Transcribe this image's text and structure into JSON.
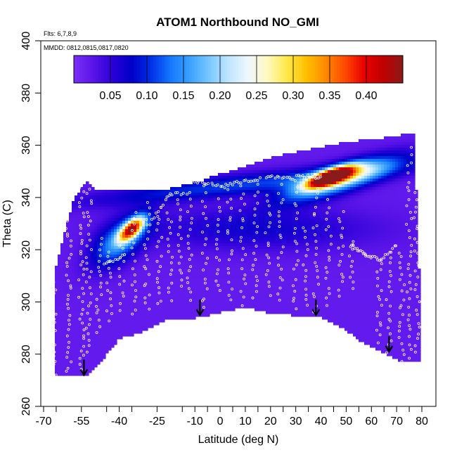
{
  "chart_data": {
    "type": "heatmap",
    "title": "ATOM1 Northbound NO_GMI",
    "annotations": {
      "flights": "Flts: 6,7,8,9",
      "dates": "MMDD: 0812,0815,0817,0820"
    },
    "xlabel": "Latitude (deg N)",
    "ylabel": "Theta (C)",
    "xlim": [
      -70,
      80
    ],
    "ylim": [
      260,
      400
    ],
    "xticks": [
      -70,
      -55,
      -40,
      -25,
      -10,
      0,
      10,
      20,
      30,
      40,
      50,
      60,
      70,
      80
    ],
    "yticks": [
      260,
      280,
      300,
      320,
      340,
      360,
      380,
      400
    ],
    "colorbar": {
      "ticks": [
        0.05,
        0.1,
        0.15,
        0.2,
        0.25,
        0.3,
        0.35,
        0.4
      ],
      "tick_labels": [
        "0.05",
        "0.10",
        "0.15",
        "0.20",
        "0.25",
        "0.30",
        "0.35",
        "0.40"
      ],
      "min": 0.0,
      "max": 0.45,
      "colors": [
        "#7b2ff7",
        "#5a14e8",
        "#2a00d8",
        "#0000c8",
        "#0030e6",
        "#1478ff",
        "#3ca0ff",
        "#78c8ff",
        "#c0e6ff",
        "#eef7ff",
        "#fff8c0",
        "#ffe94a",
        "#ffc000",
        "#ff8a00",
        "#ff4a00",
        "#e80000",
        "#c00000",
        "#8b1a1a"
      ]
    },
    "background_value": 0.02,
    "field_bounds_theta": [
      {
        "lat": -66,
        "bottom": 272,
        "top": 310
      },
      {
        "lat": -58,
        "bottom": 272,
        "top": 340
      },
      {
        "lat": -53,
        "bottom": 272,
        "top": 346
      },
      {
        "lat": -49,
        "bottom": 275,
        "top": 343
      },
      {
        "lat": -40,
        "bottom": 286,
        "top": 343
      },
      {
        "lat": -32,
        "bottom": 288,
        "top": 343
      },
      {
        "lat": -22,
        "bottom": 293,
        "top": 343
      },
      {
        "lat": -9,
        "bottom": 294,
        "top": 346
      },
      {
        "lat": 0,
        "bottom": 296,
        "top": 349
      },
      {
        "lat": 10,
        "bottom": 298,
        "top": 352
      },
      {
        "lat": 19,
        "bottom": 296,
        "top": 355
      },
      {
        "lat": 28,
        "bottom": 295,
        "top": 357
      },
      {
        "lat": 38,
        "bottom": 295,
        "top": 359
      },
      {
        "lat": 49,
        "bottom": 290,
        "top": 361
      },
      {
        "lat": 57,
        "bottom": 284,
        "top": 362
      },
      {
        "lat": 66,
        "bottom": 280,
        "top": 363
      },
      {
        "lat": 72,
        "bottom": 277,
        "top": 364
      },
      {
        "lat": 77,
        "bottom": 277,
        "top": 364
      },
      {
        "lat": 79,
        "bottom": 277,
        "top": 310
      }
    ],
    "features": [
      {
        "name": "southern-plume",
        "lat": -35,
        "theta": 328,
        "peak": 0.33,
        "sx": 5,
        "sy": 3.5,
        "tilt": 0.6
      },
      {
        "name": "southern-plume-halo",
        "lat": -40,
        "theta": 323,
        "peak": 0.13,
        "sx": 11,
        "sy": 8,
        "tilt": 0.5
      },
      {
        "name": "northern-plume-core",
        "lat": 44,
        "theta": 348,
        "peak": 0.42,
        "sx": 9,
        "sy": 2.8,
        "tilt": 0.32
      },
      {
        "name": "northern-plume-halo",
        "lat": 48,
        "theta": 347,
        "peak": 0.2,
        "sx": 22,
        "sy": 5,
        "tilt": 0.3
      },
      {
        "name": "upper-layer-band",
        "lat": 10,
        "theta": 345,
        "peak": 0.09,
        "sx": 60,
        "sy": 4,
        "tilt": 0.1
      },
      {
        "name": "mid-dark-band",
        "lat": 15,
        "theta": 328,
        "peak": 0.05,
        "sx": 45,
        "sy": 8,
        "tilt": 0
      }
    ],
    "flight_tracks": [
      {
        "lat": -66,
        "t0": 272,
        "t1": 310,
        "n": 24
      },
      {
        "lat": -60,
        "t0": 272,
        "t1": 332,
        "n": 30
      },
      {
        "lat": -55,
        "t0": 273,
        "t1": 345,
        "n": 36
      },
      {
        "lat": -52,
        "t0": 280,
        "t1": 345,
        "n": 30
      },
      {
        "lat": -48,
        "t0": 288,
        "t1": 325,
        "n": 18
      },
      {
        "lat": -44,
        "t0": 292,
        "t1": 320,
        "n": 14
      },
      {
        "lat": -39,
        "t0": 296,
        "t1": 328,
        "n": 14
      },
      {
        "lat": -34,
        "t0": 294,
        "t1": 335,
        "n": 18
      },
      {
        "lat": -29,
        "t0": 296,
        "t1": 339,
        "n": 20
      },
      {
        "lat": -24,
        "t0": 298,
        "t1": 337,
        "n": 18
      },
      {
        "lat": -20,
        "t0": 300,
        "t1": 336,
        "n": 16
      },
      {
        "lat": -16,
        "t0": 305,
        "t1": 341,
        "n": 16
      },
      {
        "lat": -12,
        "t0": 300,
        "t1": 340,
        "n": 18
      },
      {
        "lat": -6,
        "t0": 296,
        "t1": 345,
        "n": 20
      },
      {
        "lat": -1,
        "t0": 303,
        "t1": 340,
        "n": 16
      },
      {
        "lat": 4,
        "t0": 300,
        "t1": 344,
        "n": 18
      },
      {
        "lat": 9,
        "t0": 298,
        "t1": 346,
        "n": 20
      },
      {
        "lat": 14,
        "t0": 300,
        "t1": 346,
        "n": 20
      },
      {
        "lat": 19,
        "t0": 302,
        "t1": 343,
        "n": 18
      },
      {
        "lat": 24,
        "t0": 300,
        "t1": 346,
        "n": 20
      },
      {
        "lat": 30,
        "t0": 296,
        "t1": 345,
        "n": 20
      },
      {
        "lat": 34,
        "t0": 298,
        "t1": 330,
        "n": 14
      },
      {
        "lat": 38,
        "t0": 296,
        "t1": 348,
        "n": 22
      },
      {
        "lat": 43,
        "t0": 298,
        "t1": 340,
        "n": 18
      },
      {
        "lat": 48,
        "t0": 302,
        "t1": 336,
        "n": 16
      },
      {
        "lat": 52,
        "t0": 304,
        "t1": 325,
        "n": 10
      },
      {
        "lat": 63,
        "t0": 284,
        "t1": 316,
        "n": 16
      },
      {
        "lat": 67,
        "t0": 280,
        "t1": 320,
        "n": 18
      },
      {
        "lat": 72,
        "t0": 277,
        "t1": 320,
        "n": 20
      },
      {
        "lat": 75,
        "t0": 278,
        "t1": 360,
        "n": 34
      },
      {
        "lat": 78,
        "t0": 280,
        "t1": 345,
        "n": 28
      }
    ],
    "level_tracks": [
      {
        "lat0": -46,
        "lat1": -38,
        "theta0": 314,
        "theta1": 318,
        "n": 10
      },
      {
        "lat0": -28,
        "lat1": -20,
        "theta0": 330,
        "theta1": 341,
        "n": 10
      },
      {
        "lat0": -20,
        "lat1": -12,
        "theta0": 341,
        "theta1": 342,
        "n": 8
      },
      {
        "lat0": -10,
        "lat1": 2,
        "theta0": 346,
        "theta1": 344,
        "n": 14
      },
      {
        "lat0": 2,
        "lat1": 16,
        "theta0": 345,
        "theta1": 347,
        "n": 16
      },
      {
        "lat0": 18,
        "lat1": 30,
        "theta0": 348,
        "theta1": 347,
        "n": 14
      },
      {
        "lat0": 30,
        "lat1": 40,
        "theta0": 348,
        "theta1": 348,
        "n": 12
      },
      {
        "lat0": 52,
        "lat1": 58,
        "theta0": 322,
        "theta1": 318,
        "n": 12
      },
      {
        "lat0": 58,
        "lat1": 64,
        "theta0": 318,
        "theta1": 316,
        "n": 10
      },
      {
        "lat0": 64,
        "lat1": 70,
        "theta0": 316,
        "theta1": 322,
        "n": 8
      }
    ],
    "arrows": [
      {
        "lat": -54,
        "theta": 272
      },
      {
        "lat": -8,
        "theta": 295
      },
      {
        "lat": 38,
        "theta": 295
      },
      {
        "lat": 67,
        "theta": 281
      }
    ]
  }
}
